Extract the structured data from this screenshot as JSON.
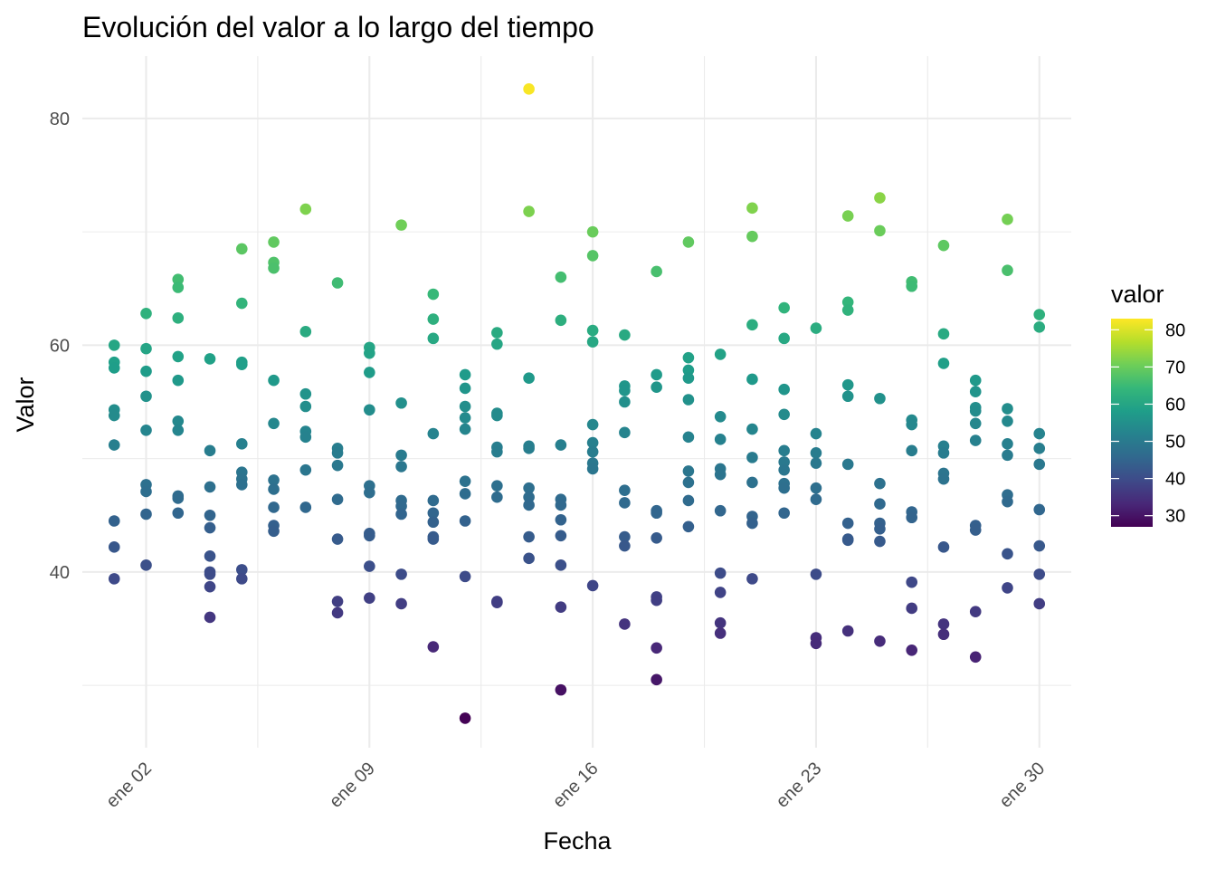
{
  "chart_data": {
    "type": "scatter",
    "title": "Evolución del valor a lo largo del tiempo",
    "xlabel": "Fecha",
    "ylabel": "Valor",
    "x_type": "date",
    "x_range": [
      "2024-12-31",
      "2025-01-31"
    ],
    "ylim": [
      24.5,
      85.5
    ],
    "x_ticks": [
      {
        "date": "2025-01-02",
        "label": "ene 02"
      },
      {
        "date": "2025-01-09",
        "label": "ene 09"
      },
      {
        "date": "2025-01-16",
        "label": "ene 16"
      },
      {
        "date": "2025-01-23",
        "label": "ene 23"
      },
      {
        "date": "2025-01-30",
        "label": "ene 30"
      }
    ],
    "y_ticks": [
      40,
      60,
      80
    ],
    "grid": true,
    "legend": {
      "title": "valor",
      "position": "right",
      "type": "colorbar",
      "palette": "viridis",
      "range": [
        27,
        83
      ],
      "ticks": [
        30,
        40,
        50,
        60,
        70,
        80
      ]
    },
    "color_stops": [
      "#440154",
      "#482878",
      "#3e4a89",
      "#31688e",
      "#26828e",
      "#1f9e89",
      "#35b779",
      "#6ece58",
      "#b5de2b",
      "#fde725"
    ],
    "points": [
      {
        "x": "2025-01-01",
        "y": [
          60.0,
          58.5,
          58.0,
          54.3,
          53.8,
          51.2,
          44.5,
          42.2,
          39.4
        ]
      },
      {
        "x": "2025-01-02",
        "y": [
          62.8,
          59.7,
          57.7,
          55.5,
          52.5,
          47.7,
          47.1,
          45.1,
          40.6
        ]
      },
      {
        "x": "2025-01-03",
        "y": [
          65.8,
          65.1,
          62.4,
          59.0,
          56.9,
          53.3,
          52.5,
          46.7,
          46.5,
          45.2
        ]
      },
      {
        "x": "2025-01-04",
        "y": [
          58.8,
          50.7,
          47.5,
          45.0,
          43.9,
          41.4,
          40.0,
          39.8,
          38.7,
          36.0
        ]
      },
      {
        "x": "2025-01-05",
        "y": [
          68.5,
          63.7,
          58.5,
          58.3,
          51.3,
          48.8,
          48.2,
          47.7,
          40.2,
          39.4
        ]
      },
      {
        "x": "2025-01-06",
        "y": [
          69.1,
          67.3,
          66.8,
          56.9,
          53.1,
          48.1,
          47.3,
          45.7,
          44.1,
          43.6
        ]
      },
      {
        "x": "2025-01-07",
        "y": [
          72.0,
          61.2,
          55.7,
          54.6,
          52.4,
          51.9,
          49.0,
          45.7
        ]
      },
      {
        "x": "2025-01-08",
        "y": [
          65.5,
          50.9,
          50.5,
          49.4,
          46.4,
          42.9,
          37.4,
          36.4
        ]
      },
      {
        "x": "2025-01-09",
        "y": [
          59.8,
          59.3,
          57.6,
          54.3,
          47.6,
          47.0,
          43.4,
          43.2,
          40.5,
          37.7
        ]
      },
      {
        "x": "2025-01-10",
        "y": [
          70.6,
          54.9,
          50.3,
          49.3,
          46.3,
          45.8,
          45.1,
          39.8,
          37.2
        ]
      },
      {
        "x": "2025-01-11",
        "y": [
          64.5,
          62.3,
          60.6,
          52.2,
          46.3,
          45.2,
          44.4,
          43.1,
          42.9,
          33.4
        ]
      },
      {
        "x": "2025-01-12",
        "y": [
          57.4,
          56.2,
          54.6,
          53.6,
          52.6,
          48.0,
          46.9,
          44.5,
          39.6,
          27.1
        ]
      },
      {
        "x": "2025-01-13",
        "y": [
          61.1,
          60.1,
          54.0,
          53.8,
          51.0,
          50.6,
          47.6,
          46.6,
          37.4,
          37.3
        ]
      },
      {
        "x": "2025-01-14",
        "y": [
          82.6,
          71.8,
          57.1,
          51.1,
          50.9,
          47.4,
          46.6,
          45.9,
          43.1,
          41.2
        ]
      },
      {
        "x": "2025-01-15",
        "y": [
          66.0,
          62.2,
          51.2,
          46.4,
          45.9,
          44.6,
          43.2,
          40.6,
          36.9,
          29.6
        ]
      },
      {
        "x": "2025-01-16",
        "y": [
          70.0,
          67.9,
          61.3,
          60.3,
          53.0,
          51.4,
          50.6,
          49.6,
          49.1,
          38.8
        ]
      },
      {
        "x": "2025-01-17",
        "y": [
          60.9,
          56.4,
          56.0,
          55.0,
          52.3,
          47.2,
          46.1,
          43.1,
          42.3,
          35.4
        ]
      },
      {
        "x": "2025-01-18",
        "y": [
          66.5,
          57.4,
          56.3,
          45.4,
          45.2,
          43.0,
          37.8,
          37.5,
          33.3,
          30.5
        ]
      },
      {
        "x": "2025-01-19",
        "y": [
          69.1,
          58.9,
          57.8,
          57.1,
          55.2,
          51.9,
          48.9,
          47.9,
          46.3,
          44.0
        ]
      },
      {
        "x": "2025-01-20",
        "y": [
          59.2,
          53.7,
          51.7,
          49.1,
          48.6,
          45.4,
          39.9,
          38.2,
          35.5,
          34.6
        ]
      },
      {
        "x": "2025-01-21",
        "y": [
          72.1,
          69.6,
          61.8,
          57.0,
          52.6,
          50.1,
          47.9,
          44.9,
          44.3,
          39.4
        ]
      },
      {
        "x": "2025-01-22",
        "y": [
          63.3,
          60.6,
          56.1,
          53.9,
          50.7,
          49.7,
          49.0,
          47.8,
          47.4,
          45.2
        ]
      },
      {
        "x": "2025-01-23",
        "y": [
          61.5,
          52.2,
          50.5,
          49.6,
          47.4,
          46.4,
          39.8,
          34.2,
          33.7
        ]
      },
      {
        "x": "2025-01-24",
        "y": [
          71.4,
          63.8,
          63.1,
          56.5,
          55.5,
          49.5,
          44.3,
          42.9,
          42.8,
          34.8
        ]
      },
      {
        "x": "2025-01-25",
        "y": [
          73.0,
          70.1,
          55.3,
          47.8,
          46.0,
          44.3,
          43.8,
          42.7,
          33.9
        ]
      },
      {
        "x": "2025-01-26",
        "y": [
          65.6,
          65.2,
          53.4,
          53.0,
          50.7,
          45.3,
          44.8,
          39.1,
          36.8,
          33.1
        ]
      },
      {
        "x": "2025-01-27",
        "y": [
          68.8,
          61.0,
          58.4,
          51.1,
          50.5,
          48.7,
          48.2,
          42.2,
          35.4,
          34.5
        ]
      },
      {
        "x": "2025-01-28",
        "y": [
          56.9,
          55.9,
          54.5,
          54.2,
          53.1,
          51.6,
          44.1,
          43.7,
          36.5,
          32.5
        ]
      },
      {
        "x": "2025-01-29",
        "y": [
          71.1,
          66.6,
          54.4,
          53.3,
          51.3,
          50.3,
          46.8,
          46.2,
          41.6,
          38.6
        ]
      },
      {
        "x": "2025-01-30",
        "y": [
          62.7,
          61.6,
          52.2,
          50.9,
          49.5,
          45.5,
          42.3,
          39.8,
          37.2
        ]
      }
    ]
  }
}
